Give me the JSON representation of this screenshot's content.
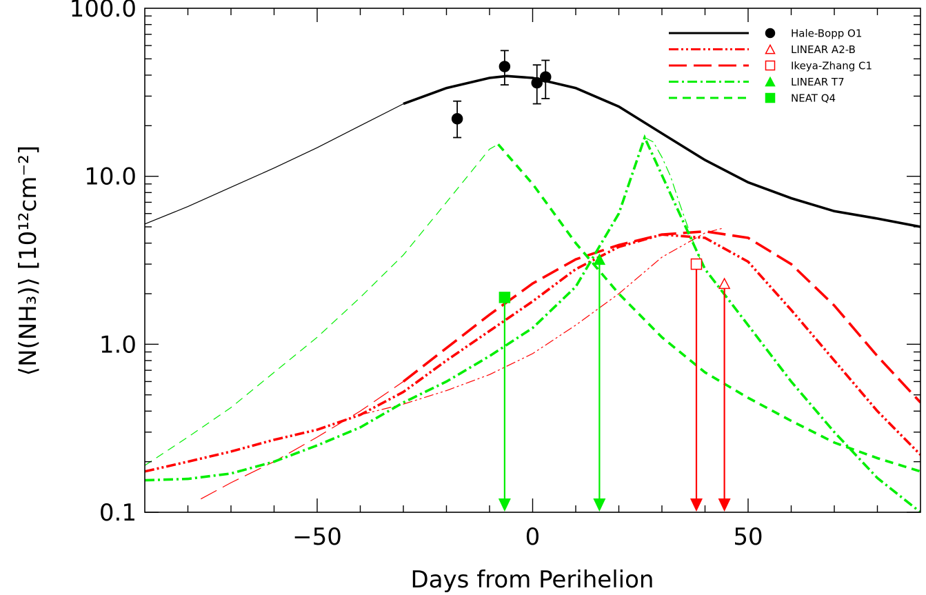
{
  "chart_data": {
    "type": "line",
    "title": "",
    "xlabel": "Days from Perihelion",
    "ylabel": "⟨N(NH₃)⟩ [10¹²cm⁻²]",
    "xlim": [
      -90,
      90
    ],
    "ylim": [
      0.1,
      100.0
    ],
    "yscale": "log",
    "x_ticks": [
      -50,
      0,
      50
    ],
    "x_tick_labels": [
      "−50",
      "0",
      "50"
    ],
    "y_ticks": [
      0.1,
      1.0,
      10.0,
      100.0
    ],
    "y_tick_labels": [
      "0.1",
      "1.0",
      "10.0",
      "100.0"
    ],
    "grid": false,
    "legend_position": "top-right",
    "series": [
      {
        "name": "Hale-Bopp O1",
        "color": "#000000",
        "dash": "solid",
        "marker": "filled-circle",
        "model_thin": {
          "x": [
            -90,
            -80,
            -70,
            -60,
            -50,
            -40,
            -30
          ],
          "y": [
            5.2,
            6.6,
            8.6,
            11.2,
            14.8,
            20.0,
            27.0
          ]
        },
        "model_thick": {
          "x": [
            -30,
            -20,
            -10,
            -6,
            0,
            10,
            20,
            30,
            40,
            50,
            60,
            70,
            80,
            90
          ],
          "y": [
            27.0,
            33.5,
            38.5,
            39.5,
            38.5,
            33.5,
            26.0,
            18.0,
            12.5,
            9.2,
            7.4,
            6.2,
            5.6,
            5.0
          ]
        },
        "points": [
          {
            "x": -17.5,
            "y": 22.0,
            "y_low": 17.0,
            "y_high": 28.0
          },
          {
            "x": -6.5,
            "y": 45.0,
            "y_low": 35.0,
            "y_high": 56.0
          },
          {
            "x": 1.0,
            "y": 36.0,
            "y_low": 27.0,
            "y_high": 46.0
          },
          {
            "x": 3.0,
            "y": 39.0,
            "y_low": 29.0,
            "y_high": 49.0
          }
        ]
      },
      {
        "name": "LINEAR A2-B",
        "color": "#ff0000",
        "dash": "dash-dot-dot",
        "marker": "open-triangle",
        "model_thin": {
          "x": [
            -40,
            -30,
            -20,
            -10,
            0,
            10,
            20,
            30,
            40,
            44
          ],
          "y": [
            0.38,
            0.44,
            0.53,
            0.66,
            0.88,
            1.3,
            2.0,
            3.3,
            4.6,
            4.9
          ]
        },
        "model_thick": {
          "x": [
            -90,
            -80,
            -70,
            -60,
            -50,
            -40,
            -30,
            -20,
            -10,
            0,
            10,
            20,
            30,
            40,
            50,
            60,
            70,
            80,
            90
          ],
          "y": [
            0.175,
            0.2,
            0.23,
            0.27,
            0.31,
            0.38,
            0.52,
            0.8,
            1.2,
            1.8,
            2.8,
            3.8,
            4.5,
            4.3,
            3.1,
            1.6,
            0.8,
            0.4,
            0.22
          ]
        },
        "points": [
          {
            "x": 44.5,
            "y": 2.3
          }
        ],
        "arrow_x": 44.5
      },
      {
        "name": "Ikeya-Zhang C1",
        "color": "#ff0000",
        "dash": "long-dash",
        "marker": "open-square",
        "model_thin": {
          "x": [
            -77,
            -70,
            -60,
            -50,
            -40,
            -30
          ],
          "y": [
            0.12,
            0.15,
            0.2,
            0.28,
            0.4,
            0.6
          ]
        },
        "model_thick": {
          "x": [
            -30,
            -20,
            -10,
            0,
            10,
            20,
            30,
            40,
            50,
            60,
            70,
            80,
            90
          ],
          "y": [
            0.6,
            0.95,
            1.5,
            2.3,
            3.2,
            3.9,
            4.5,
            4.7,
            4.3,
            3.0,
            1.7,
            0.85,
            0.45
          ]
        },
        "points": [
          {
            "x": 38.0,
            "y": 3.0
          }
        ],
        "arrow_x": 38.0
      },
      {
        "name": "LINEAR T7",
        "color": "#00ee00",
        "dash": "dash-dot",
        "marker": "filled-triangle",
        "model_thin": {
          "x": [
            26,
            28,
            30,
            32,
            34,
            36,
            38,
            40
          ],
          "y": [
            17.0,
            16.0,
            13.0,
            10.0,
            7.0,
            5.0,
            3.6,
            2.8
          ]
        },
        "model_thick": {
          "x": [
            -90,
            -80,
            -70,
            -60,
            -50,
            -40,
            -30,
            -20,
            -10,
            0,
            10,
            20,
            26,
            40,
            50,
            60,
            70,
            80,
            90
          ],
          "y": [
            0.155,
            0.158,
            0.17,
            0.2,
            0.25,
            0.32,
            0.45,
            0.6,
            0.85,
            1.25,
            2.2,
            6.0,
            17.0,
            2.8,
            1.3,
            0.6,
            0.3,
            0.16,
            0.1
          ]
        },
        "points": [
          {
            "x": 15.5,
            "y": 3.2
          }
        ],
        "arrow_x": 15.5
      },
      {
        "name": "NEAT Q4",
        "color": "#00ee00",
        "dash": "short-dash",
        "marker": "filled-square",
        "model_thin": {
          "x": [
            -90,
            -80,
            -70,
            -60,
            -50,
            -40,
            -30,
            -20,
            -10,
            -8
          ],
          "y": [
            0.19,
            0.28,
            0.42,
            0.68,
            1.1,
            1.9,
            3.4,
            7.0,
            14.5,
            15.5
          ]
        },
        "model_thick": {
          "x": [
            -8,
            0,
            10,
            20,
            30,
            40,
            50,
            60,
            70,
            80,
            90
          ],
          "y": [
            15.5,
            9.0,
            4.0,
            2.0,
            1.1,
            0.68,
            0.48,
            0.35,
            0.26,
            0.21,
            0.175
          ]
        },
        "points": [
          {
            "x": -6.5,
            "y": 1.9
          }
        ],
        "arrow_x": -6.5
      }
    ]
  }
}
